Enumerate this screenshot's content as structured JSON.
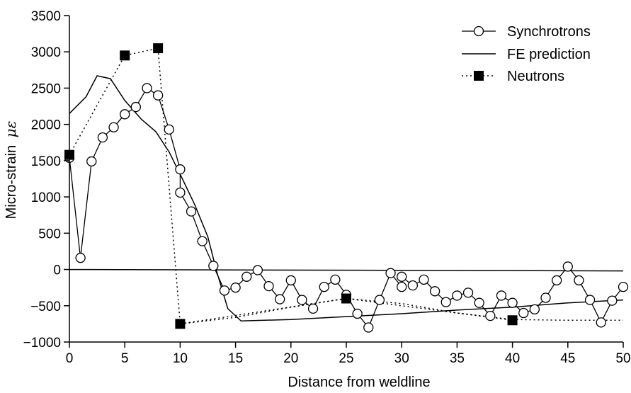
{
  "chart_data": {
    "type": "line",
    "title": "",
    "xlabel": "Distance from weldline",
    "ylabel": "Micro-strain",
    "ylabel_symbol": "με",
    "xlim": [
      0,
      50
    ],
    "ylim": [
      -1000,
      3500
    ],
    "x_ticks": [
      0,
      5,
      10,
      15,
      20,
      25,
      30,
      35,
      40,
      45,
      50
    ],
    "y_ticks": [
      -1000,
      -500,
      0,
      500,
      1000,
      1500,
      2000,
      2500,
      3000,
      3500
    ],
    "x_tick_labels": [
      "0",
      "5",
      "10",
      "15",
      "20",
      "25",
      "30",
      "35",
      "40",
      "45",
      "50"
    ],
    "y_tick_labels": [
      "−1000",
      "−500",
      "0",
      "500",
      "1000",
      "1500",
      "2000",
      "2500",
      "3000",
      "3500"
    ],
    "grid": false,
    "legend_position": "top-right",
    "series": [
      {
        "name": "Synchrotrons",
        "style": "solid-line-open-circles",
        "color": "#000000",
        "x": [
          0,
          1,
          2,
          3,
          4,
          5,
          6,
          7,
          8,
          9,
          10,
          10,
          11,
          12,
          13,
          14,
          15,
          16,
          17,
          18,
          19,
          20,
          21,
          22,
          23,
          24,
          25,
          26,
          27,
          28,
          29,
          30,
          30,
          31,
          32,
          33,
          34,
          35,
          36,
          37,
          38,
          39,
          40,
          41,
          42,
          43,
          44,
          45,
          46,
          47,
          48,
          49,
          50
        ],
        "y": [
          1540,
          160,
          1490,
          1820,
          1960,
          2140,
          2240,
          2500,
          2400,
          1930,
          1380,
          1060,
          800,
          390,
          50,
          -290,
          -250,
          -100,
          -10,
          -230,
          -410,
          -150,
          -420,
          -540,
          -240,
          -140,
          -350,
          -610,
          -800,
          -420,
          -50,
          -240,
          -100,
          -220,
          -140,
          -300,
          -450,
          -360,
          -320,
          -460,
          -640,
          -360,
          -460,
          -600,
          -550,
          -390,
          -150,
          40,
          -150,
          -420,
          -730,
          -430,
          -240
        ]
      },
      {
        "name": "FE prediction",
        "style": "solid-line",
        "color": "#000000",
        "x": [
          0,
          1.5,
          2.5,
          3.7,
          5,
          6.5,
          7.8,
          9,
          10.2,
          11.3,
          12.5,
          13.3,
          14.3,
          15.5,
          20,
          25,
          30,
          35,
          40,
          45,
          50
        ],
        "y": [
          2150,
          2380,
          2670,
          2630,
          2330,
          2070,
          1900,
          1620,
          1250,
          900,
          450,
          -30,
          -540,
          -710,
          -690,
          -650,
          -610,
          -560,
          -520,
          -460,
          -420
        ]
      },
      {
        "name": "Neutrons",
        "style": "dotted-line-filled-squares",
        "color": "#000000",
        "x": [
          0,
          5,
          8,
          10,
          25,
          40
        ],
        "y": [
          1580,
          2950,
          3050,
          -750,
          -400,
          -700
        ]
      },
      {
        "name": "",
        "style": "neutrons-trend-dotted",
        "color": "#000000",
        "x": [
          10,
          15,
          20,
          25,
          30,
          35,
          40,
          45,
          50
        ],
        "y": [
          -750,
          -660,
          -520,
          -400,
          -470,
          -600,
          -690,
          -700,
          -700
        ]
      },
      {
        "name": "",
        "style": "zero-baseline",
        "color": "#000000",
        "x": [
          0,
          50
        ],
        "y": [
          0,
          -20
        ]
      }
    ]
  }
}
